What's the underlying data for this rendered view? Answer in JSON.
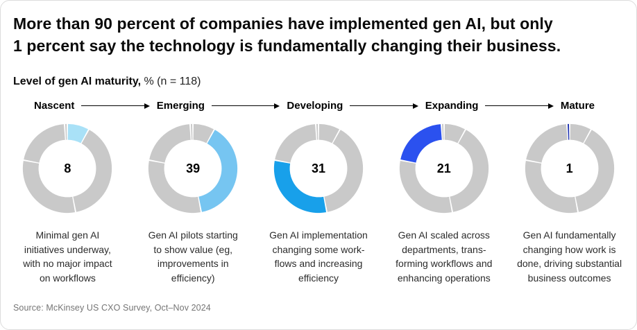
{
  "header": {
    "title": "More than 90 percent of companies have implemented gen AI, but only\n1 percent say the technology is fundamentally changing their business.",
    "subtitle_bold": "Level of gen AI maturity,",
    "subtitle_note": " % (n = 118)"
  },
  "stages": [
    {
      "label": "Nascent",
      "value": "8",
      "description": "Minimal gen AI\ninitiatives underway,\nwith no major impact\non workflows",
      "color": "#A9E1F7"
    },
    {
      "label": "Emerging",
      "value": "39",
      "description": "Gen AI pilots starting\nto show value (eg,\nimprovements in\nefficiency)",
      "color": "#76C5F1"
    },
    {
      "label": "Developing",
      "value": "31",
      "description": "Gen AI implementation\nchanging some work-\nflows and increasing\nefficiency",
      "color": "#18A0EA"
    },
    {
      "label": "Expanding",
      "value": "21",
      "description": "Gen AI scaled across\ndepartments, trans-\nforming workflows and\nenhancing operations",
      "color": "#2B51EF"
    },
    {
      "label": "Mature",
      "value": "1",
      "description": "Gen AI fundamentally\nchanging how work is\ndone, driving substantial\nbusiness outcomes",
      "color": "#2033B2"
    }
  ],
  "chart_data": {
    "type": "pie",
    "variant": "donut-progression",
    "title": "Level of gen AI maturity, % (n = 118)",
    "n": 118,
    "categories": [
      "Nascent",
      "Emerging",
      "Developing",
      "Expanding",
      "Mature"
    ],
    "values": [
      8,
      39,
      31,
      21,
      1
    ],
    "highlight_colors": [
      "#A9E1F7",
      "#76C5F1",
      "#18A0EA",
      "#2B51EF",
      "#2033B2"
    ],
    "muted_color": "#C9C9C9",
    "layout": "five donuts in a row; each donut shows all five segments clockwise from 12 o'clock with only its own stage colored, value centered in the hole",
    "legend_position": "none",
    "center_labels": [
      "8",
      "39",
      "31",
      "21",
      "1"
    ]
  },
  "footer": {
    "source": "Source: McKinsey US CXO Survey, Oct–Nov 2024"
  }
}
